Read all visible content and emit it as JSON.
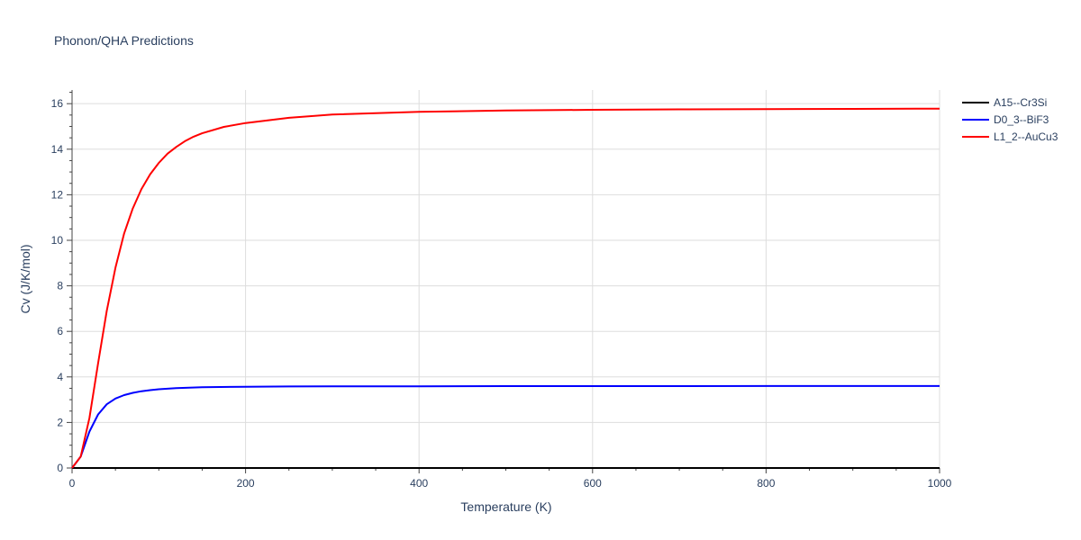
{
  "chart_data": {
    "type": "line",
    "title": "Phonon/QHA Predictions",
    "xlabel": "Temperature (K)",
    "ylabel": "Cv (J/K/mol)",
    "xlim": [
      0,
      1000
    ],
    "ylim": [
      0,
      16.6
    ],
    "x_ticks": [
      0,
      200,
      400,
      600,
      800,
      1000
    ],
    "y_ticks": [
      0,
      2,
      4,
      6,
      8,
      10,
      12,
      14,
      16
    ],
    "grid": true,
    "legend_position": "top-right",
    "series": [
      {
        "name": "A15--Cr3Si",
        "color": "#000000",
        "x": [
          0,
          100,
          200,
          300,
          400,
          500,
          600,
          700,
          800,
          900,
          1000
        ],
        "y": [
          0,
          0,
          0,
          0,
          0,
          0,
          0,
          0,
          0,
          0,
          0
        ]
      },
      {
        "name": "D0_3--BiF3",
        "color": "#0000ff",
        "x": [
          0,
          10,
          20,
          30,
          40,
          50,
          60,
          70,
          80,
          90,
          100,
          120,
          150,
          200,
          250,
          300,
          400,
          500,
          600,
          700,
          800,
          900,
          1000
        ],
        "y": [
          0,
          0.5,
          1.6,
          2.35,
          2.8,
          3.05,
          3.2,
          3.3,
          3.37,
          3.42,
          3.46,
          3.51,
          3.55,
          3.57,
          3.58,
          3.585,
          3.59,
          3.595,
          3.597,
          3.598,
          3.599,
          3.6,
          3.6
        ]
      },
      {
        "name": "L1_2--AuCu3",
        "color": "#ff0000",
        "x": [
          0,
          10,
          20,
          30,
          40,
          50,
          60,
          70,
          80,
          90,
          100,
          110,
          120,
          130,
          140,
          150,
          175,
          200,
          250,
          300,
          400,
          500,
          600,
          700,
          800,
          900,
          1000
        ],
        "y": [
          0,
          0.5,
          2.2,
          4.6,
          6.9,
          8.8,
          10.3,
          11.4,
          12.25,
          12.9,
          13.4,
          13.8,
          14.1,
          14.35,
          14.55,
          14.7,
          14.98,
          15.15,
          15.38,
          15.52,
          15.64,
          15.7,
          15.73,
          15.75,
          15.76,
          15.77,
          15.78
        ]
      }
    ]
  }
}
